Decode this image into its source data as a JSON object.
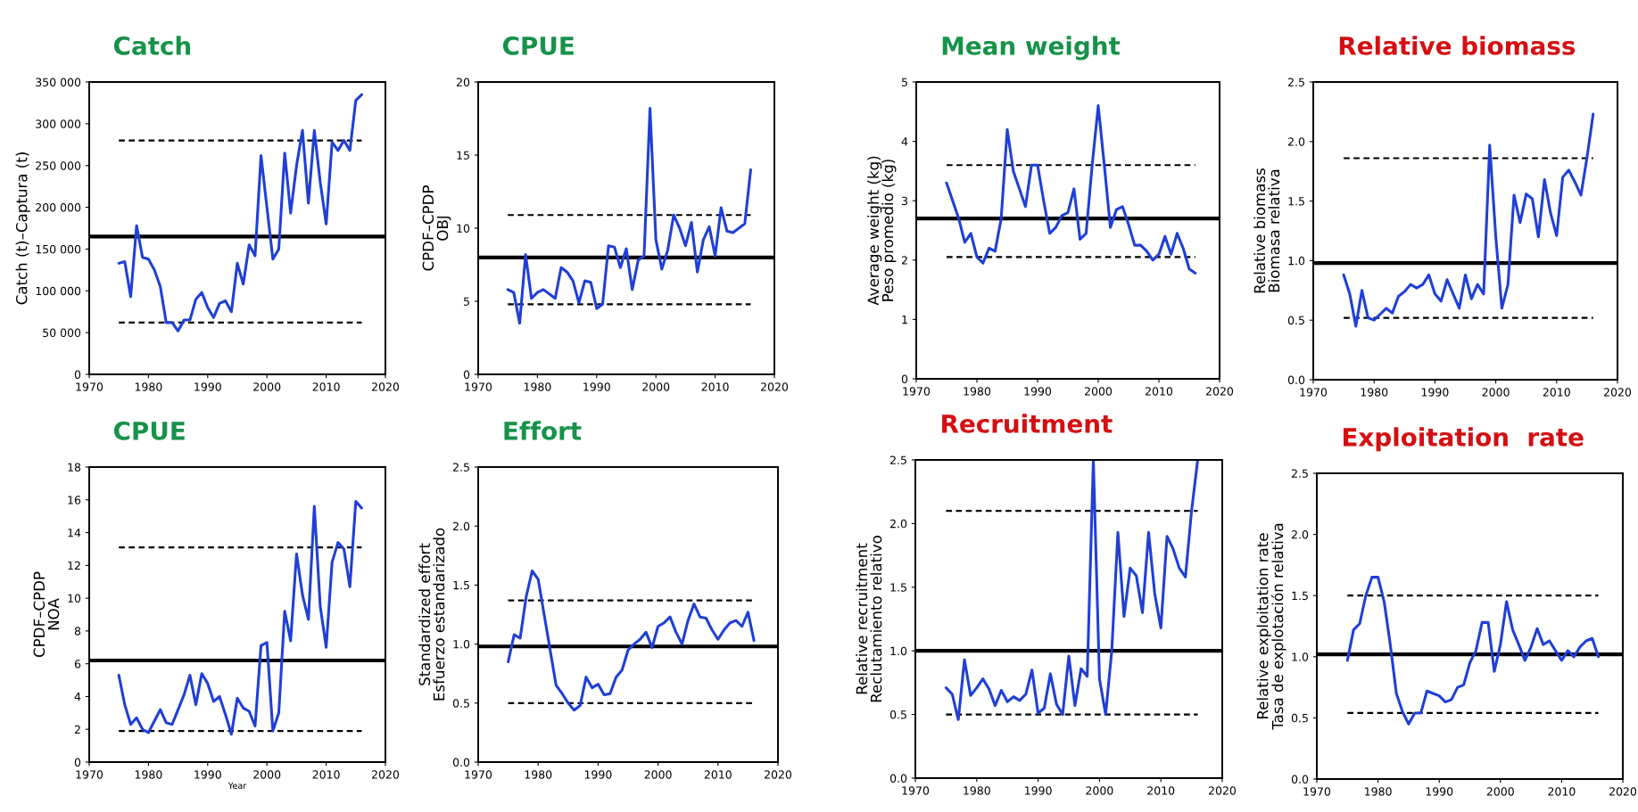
{
  "chart_data": [
    {
      "type": "line",
      "title": "Catch",
      "ylabel": "Catch (t)–Captura (t)",
      "x": [
        1975,
        1976,
        1977,
        1978,
        1979,
        1980,
        1981,
        1982,
        1983,
        1984,
        1985,
        1986,
        1987,
        1988,
        1989,
        1990,
        1991,
        1992,
        1993,
        1994,
        1995,
        1996,
        1997,
        1998,
        1999,
        2000,
        2001,
        2002,
        2003,
        2004,
        2005,
        2006,
        2007,
        2008,
        2009,
        2010,
        2011,
        2012,
        2013,
        2014,
        2015,
        2016
      ],
      "series": [
        {
          "color": "#1f3fd6",
          "values": [
            133000,
            135000,
            93000,
            178000,
            140000,
            138000,
            125000,
            105000,
            62000,
            62000,
            52000,
            65000,
            65000,
            90000,
            98000,
            80000,
            68000,
            85000,
            88000,
            75000,
            133000,
            108000,
            155000,
            142000,
            262000,
            200000,
            138000,
            150000,
            265000,
            193000,
            250000,
            292000,
            205000,
            292000,
            230000,
            180000,
            278000,
            268000,
            280000,
            268000,
            328000,
            335000
          ]
        }
      ],
      "xlim": [
        1970,
        2020
      ],
      "xticks": [
        1970,
        1980,
        1990,
        2000,
        2010,
        2020
      ],
      "ylim": [
        0,
        350000
      ],
      "yticks": [
        {
          "value": 0,
          "label": "0"
        },
        {
          "value": 50000,
          "label": "50 000"
        },
        {
          "value": 100000,
          "label": "100 000"
        },
        {
          "value": 150000,
          "label": "150 000"
        },
        {
          "value": 200000,
          "label": "200 000"
        },
        {
          "value": 250000,
          "label": "250 000"
        },
        {
          "value": 300000,
          "label": "300 000"
        },
        {
          "value": 350000,
          "label": "350 000"
        }
      ],
      "ref_lines": [
        {
          "axis": "y",
          "value": 165000,
          "color": "#000000",
          "line_style": "solid"
        },
        {
          "axis": "y",
          "value": 280000,
          "color": "#000000",
          "line_style": "dashed"
        },
        {
          "axis": "y",
          "value": 62000,
          "color": "#000000",
          "line_style": "dashed"
        }
      ]
    },
    {
      "type": "line",
      "title": "CPUE",
      "ylabel": "CPDF–CPDP\nOBJ",
      "x": [
        1975,
        1976,
        1977,
        1978,
        1979,
        1980,
        1981,
        1982,
        1983,
        1984,
        1985,
        1986,
        1987,
        1988,
        1989,
        1990,
        1991,
        1992,
        1993,
        1994,
        1995,
        1996,
        1997,
        1998,
        1999,
        2000,
        2001,
        2002,
        2003,
        2004,
        2005,
        2006,
        2007,
        2008,
        2009,
        2010,
        2011,
        2012,
        2013,
        2014,
        2015,
        2016
      ],
      "series": [
        {
          "color": "#1f3fd6",
          "values": [
            5.8,
            5.6,
            3.5,
            8.2,
            5.2,
            5.6,
            5.8,
            5.5,
            5.2,
            7.3,
            7.0,
            6.4,
            4.9,
            6.4,
            6.3,
            4.5,
            4.8,
            8.8,
            8.7,
            7.3,
            8.6,
            5.8,
            7.8,
            8.1,
            18.2,
            9.2,
            7.2,
            8.5,
            10.9,
            10.0,
            8.8,
            10.4,
            7.0,
            9.2,
            10.1,
            8.1,
            11.4,
            9.8,
            9.7,
            10.0,
            10.3,
            14.0
          ]
        }
      ],
      "xlim": [
        1970,
        2020
      ],
      "xticks": [
        1970,
        1980,
        1990,
        2000,
        2010,
        2020
      ],
      "ylim": [
        0,
        20
      ],
      "yticks": [
        0,
        5,
        10,
        15,
        20
      ],
      "ref_lines": [
        {
          "axis": "y",
          "value": 8.0,
          "color": "#000000",
          "line_style": "solid"
        },
        {
          "axis": "y",
          "value": 10.9,
          "color": "#000000",
          "line_style": "dashed"
        },
        {
          "axis": "y",
          "value": 4.8,
          "color": "#000000",
          "line_style": "dashed"
        }
      ]
    },
    {
      "type": "line",
      "title": "Mean weight",
      "ylabel": "Average weight (kg)\nPeso promedio (kg)",
      "x": [
        1975,
        1976,
        1977,
        1978,
        1979,
        1980,
        1981,
        1982,
        1983,
        1984,
        1985,
        1986,
        1987,
        1988,
        1989,
        1990,
        1991,
        1992,
        1993,
        1994,
        1995,
        1996,
        1997,
        1998,
        1999,
        2000,
        2001,
        2002,
        2003,
        2004,
        2005,
        2006,
        2007,
        2008,
        2009,
        2010,
        2011,
        2012,
        2013,
        2014,
        2015,
        2016
      ],
      "series": [
        {
          "color": "#1f3fd6",
          "values": [
            3.3,
            3.0,
            2.7,
            2.3,
            2.45,
            2.05,
            1.95,
            2.2,
            2.15,
            2.7,
            4.2,
            3.5,
            3.2,
            2.9,
            3.6,
            3.6,
            3.0,
            2.45,
            2.55,
            2.75,
            2.8,
            3.2,
            2.35,
            2.45,
            3.6,
            4.6,
            3.6,
            2.55,
            2.85,
            2.9,
            2.6,
            2.25,
            2.25,
            2.15,
            2.0,
            2.1,
            2.4,
            2.1,
            2.45,
            2.2,
            1.85,
            1.78
          ]
        }
      ],
      "xlim": [
        1970,
        2020
      ],
      "xticks": [
        1970,
        1980,
        1990,
        2000,
        2010,
        2020
      ],
      "ylim": [
        0,
        5
      ],
      "yticks": [
        0,
        1,
        2,
        3,
        4,
        5
      ],
      "ref_lines": [
        {
          "axis": "y",
          "value": 2.7,
          "color": "#000000",
          "line_style": "solid"
        },
        {
          "axis": "y",
          "value": 3.6,
          "color": "#000000",
          "line_style": "dashed"
        },
        {
          "axis": "y",
          "value": 2.05,
          "color": "#000000",
          "line_style": "dashed"
        }
      ]
    },
    {
      "type": "line",
      "title": "Relative biomass",
      "ylabel": "Relative biomass\nBiomasa relativa",
      "x": [
        1975,
        1976,
        1977,
        1978,
        1979,
        1980,
        1981,
        1982,
        1983,
        1984,
        1985,
        1986,
        1987,
        1988,
        1989,
        1990,
        1991,
        1992,
        1993,
        1994,
        1995,
        1996,
        1997,
        1998,
        1999,
        2000,
        2001,
        2002,
        2003,
        2004,
        2005,
        2006,
        2007,
        2008,
        2009,
        2010,
        2011,
        2012,
        2013,
        2014,
        2015,
        2016
      ],
      "series": [
        {
          "color": "#1f3fd6",
          "values": [
            0.88,
            0.72,
            0.45,
            0.75,
            0.52,
            0.5,
            0.55,
            0.6,
            0.56,
            0.7,
            0.74,
            0.8,
            0.77,
            0.8,
            0.88,
            0.72,
            0.66,
            0.84,
            0.72,
            0.6,
            0.88,
            0.68,
            0.8,
            0.72,
            1.97,
            1.2,
            0.6,
            0.8,
            1.55,
            1.32,
            1.56,
            1.52,
            1.2,
            1.68,
            1.4,
            1.21,
            1.7,
            1.76,
            1.66,
            1.55,
            1.87,
            2.23
          ]
        }
      ],
      "xlim": [
        1970,
        2020
      ],
      "xticks": [
        1970,
        1980,
        1990,
        2000,
        2010,
        2020
      ],
      "ylim": [
        0,
        2.5
      ],
      "yticks": [
        {
          "value": 0,
          "label": "0.0"
        },
        {
          "value": 0.5,
          "label": "0.5"
        },
        {
          "value": 1,
          "label": "1.0"
        },
        {
          "value": 1.5,
          "label": "1.5"
        },
        {
          "value": 2,
          "label": "2.0"
        },
        {
          "value": 2.5,
          "label": "2.5"
        }
      ],
      "ref_lines": [
        {
          "axis": "y",
          "value": 0.98,
          "color": "#000000",
          "line_style": "solid"
        },
        {
          "axis": "y",
          "value": 1.86,
          "color": "#000000",
          "line_style": "dashed"
        },
        {
          "axis": "y",
          "value": 0.52,
          "color": "#000000",
          "line_style": "dashed"
        }
      ]
    },
    {
      "type": "line",
      "title": "CPUE",
      "xlabel": "Year",
      "ylabel": "CPDF–CPDP\nNOA",
      "x": [
        1975,
        1976,
        1977,
        1978,
        1979,
        1980,
        1981,
        1982,
        1983,
        1984,
        1985,
        1986,
        1987,
        1988,
        1989,
        1990,
        1991,
        1992,
        1993,
        1994,
        1995,
        1996,
        1997,
        1998,
        1999,
        2000,
        2001,
        2002,
        2003,
        2004,
        2005,
        2006,
        2007,
        2008,
        2009,
        2010,
        2011,
        2012,
        2013,
        2014,
        2015,
        2016
      ],
      "series": [
        {
          "color": "#1f3fd6",
          "values": [
            5.3,
            3.5,
            2.3,
            2.7,
            2.0,
            1.8,
            2.5,
            3.2,
            2.4,
            2.3,
            3.2,
            4.1,
            5.3,
            3.5,
            5.4,
            4.8,
            3.7,
            4.0,
            2.9,
            1.7,
            3.9,
            3.3,
            3.1,
            2.2,
            7.1,
            7.3,
            1.9,
            3.0,
            9.2,
            7.4,
            12.7,
            10.2,
            8.7,
            15.6,
            9.5,
            7.0,
            12.2,
            13.4,
            13.0,
            10.7,
            15.9,
            15.5
          ]
        }
      ],
      "xlim": [
        1970,
        2020
      ],
      "xticks": [
        1970,
        1980,
        1990,
        2000,
        2010,
        2020
      ],
      "ylim": [
        0,
        18
      ],
      "yticks": [
        0,
        2,
        4,
        6,
        8,
        10,
        12,
        14,
        16,
        18
      ],
      "ref_lines": [
        {
          "axis": "y",
          "value": 6.2,
          "color": "#000000",
          "line_style": "solid"
        },
        {
          "axis": "y",
          "value": 13.1,
          "color": "#000000",
          "line_style": "dashed"
        },
        {
          "axis": "y",
          "value": 1.9,
          "color": "#000000",
          "line_style": "dashed"
        }
      ]
    },
    {
      "type": "line",
      "title": "Effort",
      "ylabel": "Standardized effort\nEsfuerzo estandarizado",
      "x": [
        1975,
        1976,
        1977,
        1978,
        1979,
        1980,
        1981,
        1982,
        1983,
        1984,
        1985,
        1986,
        1987,
        1988,
        1989,
        1990,
        1991,
        1992,
        1993,
        1994,
        1995,
        1996,
        1997,
        1998,
        1999,
        2000,
        2001,
        2002,
        2003,
        2004,
        2005,
        2006,
        2007,
        2008,
        2009,
        2010,
        2011,
        2012,
        2013,
        2014,
        2015,
        2016
      ],
      "series": [
        {
          "color": "#1f3fd6",
          "values": [
            0.85,
            1.08,
            1.05,
            1.4,
            1.62,
            1.55,
            1.25,
            0.95,
            0.65,
            0.58,
            0.5,
            0.44,
            0.48,
            0.72,
            0.63,
            0.66,
            0.57,
            0.58,
            0.72,
            0.78,
            0.95,
            1.0,
            1.04,
            1.1,
            0.97,
            1.15,
            1.18,
            1.23,
            1.1,
            1.0,
            1.2,
            1.34,
            1.23,
            1.22,
            1.12,
            1.04,
            1.12,
            1.18,
            1.2,
            1.15,
            1.27,
            1.03
          ]
        }
      ],
      "xlim": [
        1970,
        2020
      ],
      "xticks": [
        1970,
        1980,
        1990,
        2000,
        2010,
        2020
      ],
      "ylim": [
        0,
        2.5
      ],
      "yticks": [
        {
          "value": 0,
          "label": "0.0"
        },
        {
          "value": 0.5,
          "label": "0.5"
        },
        {
          "value": 1,
          "label": "1.0"
        },
        {
          "value": 1.5,
          "label": "1.5"
        },
        {
          "value": 2,
          "label": "2.0"
        },
        {
          "value": 2.5,
          "label": "2.5"
        }
      ],
      "ref_lines": [
        {
          "axis": "y",
          "value": 0.98,
          "color": "#000000",
          "line_style": "solid"
        },
        {
          "axis": "y",
          "value": 1.37,
          "color": "#000000",
          "line_style": "dashed"
        },
        {
          "axis": "y",
          "value": 0.5,
          "color": "#000000",
          "line_style": "dashed"
        }
      ]
    },
    {
      "type": "line",
      "title": "Recruitment",
      "ylabel": "Relative recruitment\nReclutamiento relativo",
      "x": [
        1975,
        1976,
        1977,
        1978,
        1979,
        1980,
        1981,
        1982,
        1983,
        1984,
        1985,
        1986,
        1987,
        1988,
        1989,
        1990,
        1991,
        1992,
        1993,
        1994,
        1995,
        1996,
        1997,
        1998,
        1999,
        2000,
        2001,
        2002,
        2003,
        2004,
        2005,
        2006,
        2007,
        2008,
        2009,
        2010,
        2011,
        2012,
        2013,
        2014,
        2015,
        2016
      ],
      "series": [
        {
          "color": "#1f3fd6",
          "values": [
            0.71,
            0.66,
            0.46,
            0.93,
            0.65,
            0.71,
            0.78,
            0.7,
            0.57,
            0.69,
            0.6,
            0.64,
            0.61,
            0.66,
            0.85,
            0.51,
            0.55,
            0.82,
            0.58,
            0.5,
            0.96,
            0.57,
            0.86,
            0.8,
            2.5,
            0.78,
            0.5,
            1.0,
            1.93,
            1.27,
            1.65,
            1.59,
            1.3,
            1.93,
            1.45,
            1.18,
            1.9,
            1.8,
            1.65,
            1.58,
            2.1,
            2.5
          ]
        }
      ],
      "xlim": [
        1970,
        2020
      ],
      "xticks": [
        1970,
        1980,
        1990,
        2000,
        2010,
        2020
      ],
      "ylim": [
        0,
        2.5
      ],
      "yticks": [
        {
          "value": 0,
          "label": "0.0"
        },
        {
          "value": 0.5,
          "label": "0.5"
        },
        {
          "value": 1,
          "label": "1.0"
        },
        {
          "value": 1.5,
          "label": "1.5"
        },
        {
          "value": 2,
          "label": "2.0"
        },
        {
          "value": 2.5,
          "label": "2.5"
        }
      ],
      "ref_lines": [
        {
          "axis": "y",
          "value": 1.0,
          "color": "#000000",
          "line_style": "solid"
        },
        {
          "axis": "y",
          "value": 2.1,
          "color": "#000000",
          "line_style": "dashed"
        },
        {
          "axis": "y",
          "value": 0.5,
          "color": "#000000",
          "line_style": "dashed"
        }
      ]
    },
    {
      "type": "line",
      "title": "Exploitation  rate",
      "ylabel": "Relative exploitation rate\nTasa de explotación relativa",
      "x": [
        1975,
        1976,
        1977,
        1978,
        1979,
        1980,
        1981,
        1982,
        1983,
        1984,
        1985,
        1986,
        1987,
        1988,
        1989,
        1990,
        1991,
        1992,
        1993,
        1994,
        1995,
        1996,
        1997,
        1998,
        1999,
        2000,
        2001,
        2002,
        2003,
        2004,
        2005,
        2006,
        2007,
        2008,
        2009,
        2010,
        2011,
        2012,
        2013,
        2014,
        2015,
        2016
      ],
      "series": [
        {
          "color": "#1f3fd6",
          "values": [
            0.97,
            1.22,
            1.27,
            1.5,
            1.65,
            1.65,
            1.45,
            1.1,
            0.7,
            0.55,
            0.45,
            0.54,
            0.54,
            0.72,
            0.7,
            0.68,
            0.63,
            0.65,
            0.75,
            0.77,
            0.95,
            1.05,
            1.28,
            1.28,
            0.88,
            1.1,
            1.45,
            1.22,
            1.1,
            0.97,
            1.08,
            1.23,
            1.1,
            1.13,
            1.05,
            0.97,
            1.05,
            1.0,
            1.08,
            1.13,
            1.15,
            1.0
          ]
        }
      ],
      "xlim": [
        1970,
        2020
      ],
      "xticks": [
        1970,
        1980,
        1990,
        2000,
        2010,
        2020
      ],
      "ylim": [
        0,
        2.5
      ],
      "yticks": [
        {
          "value": 0,
          "label": "0.0"
        },
        {
          "value": 0.5,
          "label": "0.5"
        },
        {
          "value": 1,
          "label": "1.0"
        },
        {
          "value": 1.5,
          "label": "1.5"
        },
        {
          "value": 2,
          "label": "2.0"
        },
        {
          "value": 2.5,
          "label": "2.5"
        }
      ],
      "ref_lines": [
        {
          "axis": "y",
          "value": 1.02,
          "color": "#000000",
          "line_style": "solid"
        },
        {
          "axis": "y",
          "value": 1.5,
          "color": "#000000",
          "line_style": "dashed"
        },
        {
          "axis": "y",
          "value": 0.54,
          "color": "#000000",
          "line_style": "dashed"
        }
      ]
    }
  ]
}
